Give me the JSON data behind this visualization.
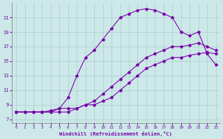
{
  "xlabel": "Windchill (Refroidissement éolien,°C)",
  "background_color": "#cce8e8",
  "line_color": "#7700aa",
  "grid_color": "#aacccc",
  "xlim": [
    -0.5,
    23.5
  ],
  "ylim": [
    6.5,
    23
  ],
  "xticks": [
    0,
    1,
    2,
    3,
    4,
    5,
    6,
    7,
    8,
    9,
    10,
    11,
    12,
    13,
    14,
    15,
    16,
    17,
    18,
    19,
    20,
    21,
    22,
    23
  ],
  "yticks": [
    7,
    9,
    11,
    13,
    15,
    17,
    19,
    21
  ],
  "curve1_x": [
    0,
    1,
    2,
    3,
    4,
    5,
    6,
    7,
    8,
    9,
    10,
    11,
    12,
    13,
    14,
    15,
    16,
    17,
    18,
    19,
    20,
    21,
    22,
    23
  ],
  "curve1_y": [
    8.0,
    8.0,
    8.0,
    8.0,
    8.2,
    8.5,
    10.0,
    13.0,
    15.5,
    16.5,
    18.0,
    19.5,
    21.0,
    21.5,
    22.0,
    22.2,
    22.0,
    21.5,
    21.0,
    19.0,
    18.5,
    19.0,
    16.0,
    14.5
  ],
  "curve2_x": [
    0,
    1,
    2,
    3,
    4,
    5,
    6,
    7,
    8,
    9,
    10,
    11,
    12,
    13,
    14,
    15,
    16,
    17,
    18,
    19,
    20,
    21,
    22,
    23
  ],
  "curve2_y": [
    8.0,
    8.0,
    8.0,
    8.0,
    8.0,
    8.5,
    8.5,
    8.5,
    9.0,
    9.5,
    10.5,
    11.5,
    12.5,
    13.5,
    14.5,
    15.5,
    16.0,
    16.5,
    17.0,
    17.0,
    17.2,
    17.5,
    17.0,
    16.5
  ],
  "curve3_x": [
    0,
    1,
    2,
    3,
    4,
    5,
    6,
    7,
    8,
    9,
    10,
    11,
    12,
    13,
    14,
    15,
    16,
    17,
    18,
    19,
    20,
    21,
    22,
    23
  ],
  "curve3_y": [
    8.0,
    8.0,
    8.0,
    8.0,
    8.0,
    8.0,
    8.0,
    8.5,
    9.0,
    9.0,
    9.5,
    10.0,
    11.0,
    12.0,
    13.0,
    14.0,
    14.5,
    15.0,
    15.5,
    15.5,
    15.8,
    16.0,
    16.2,
    16.0
  ]
}
